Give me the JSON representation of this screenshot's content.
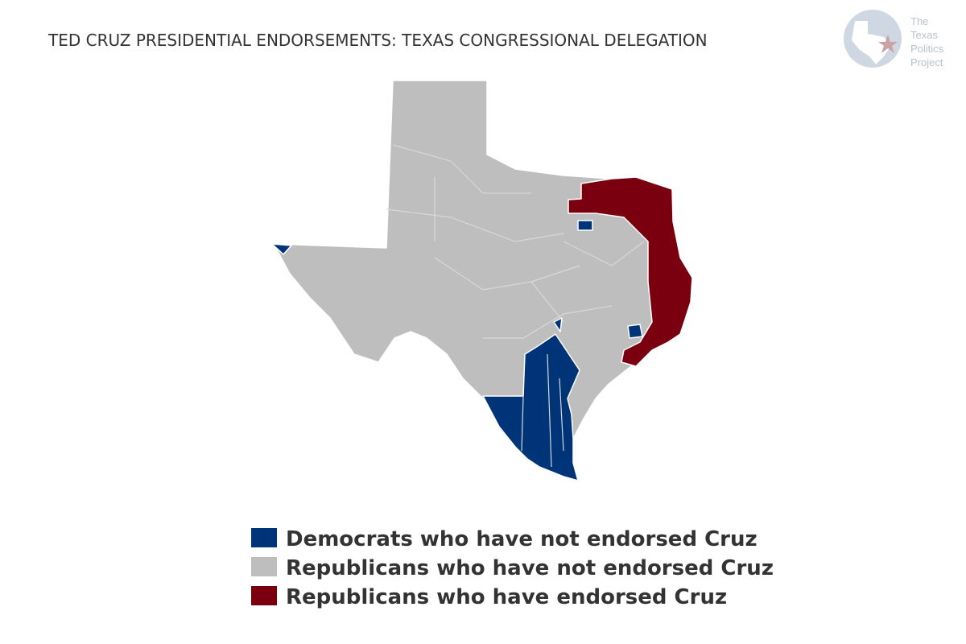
{
  "title": "TED CRUZ PRESIDENTIAL ENDORSEMENTS: TEXAS CONGRESSIONAL DELEGATION",
  "logo": {
    "lines": [
      "The",
      "Texas",
      "Politics",
      "Project"
    ]
  },
  "legend": [
    {
      "label": "Democrats who have not endorsed Cruz",
      "color": "#003478"
    },
    {
      "label": "Republicans who have not endorsed Cruz",
      "color": "#bebebe"
    },
    {
      "label": "Republicans who have endorsed Cruz",
      "color": "#7a0010"
    }
  ]
}
